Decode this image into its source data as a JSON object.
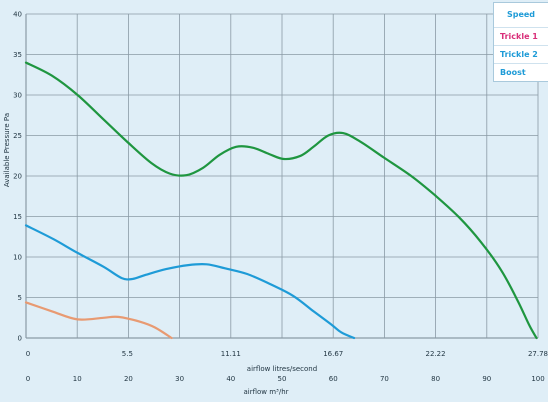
{
  "chart_data": {
    "type": "line",
    "xlabel": "airflow litres/second",
    "xlabel2": "airflow m³/hr",
    "ylabel": "Available Pressure Pa",
    "xlim": [
      0,
      27.78
    ],
    "ylim": [
      0,
      40
    ],
    "x_ticks": [
      "0",
      "5.5",
      "11.11",
      "16.67",
      "22.22",
      "27.78"
    ],
    "x_ticks2": [
      "0",
      "10",
      "20",
      "30",
      "40",
      "50",
      "60",
      "70",
      "80",
      "90",
      "100"
    ],
    "y_ticks": [
      "0",
      "5",
      "10",
      "15",
      "20",
      "25",
      "30",
      "35",
      "40"
    ],
    "legend": {
      "header": "Speed",
      "items": [
        "Trickle 1",
        "Trickle 2",
        "Boost"
      ]
    },
    "series": [
      {
        "name": "Trickle 1",
        "color": "#e89a72",
        "points": [
          [
            0,
            4.4
          ],
          [
            1.4,
            3.3
          ],
          [
            2.8,
            2.3
          ],
          [
            4.2,
            2.5
          ],
          [
            5.0,
            2.6
          ],
          [
            6.2,
            2.0
          ],
          [
            7.0,
            1.3
          ],
          [
            7.9,
            0
          ]
        ]
      },
      {
        "name": "Trickle 2",
        "color": "#1e9bd7",
        "points": [
          [
            0,
            13.9
          ],
          [
            1.5,
            12.2
          ],
          [
            2.8,
            10.5
          ],
          [
            4.2,
            8.8
          ],
          [
            5.2,
            7.4
          ],
          [
            5.8,
            7.3
          ],
          [
            6.5,
            7.8
          ],
          [
            7.6,
            8.5
          ],
          [
            8.8,
            9.0
          ],
          [
            9.8,
            9.1
          ],
          [
            10.8,
            8.6
          ],
          [
            12.0,
            7.9
          ],
          [
            13.3,
            6.6
          ],
          [
            14.5,
            5.2
          ],
          [
            15.6,
            3.3
          ],
          [
            16.6,
            1.6
          ],
          [
            17.1,
            0.7
          ],
          [
            17.8,
            0
          ]
        ]
      },
      {
        "name": "Boost",
        "color": "#1f9640",
        "points": [
          [
            0,
            34.0
          ],
          [
            1.4,
            32.4
          ],
          [
            2.8,
            30.0
          ],
          [
            4.2,
            27.0
          ],
          [
            5.5,
            24.2
          ],
          [
            6.8,
            21.6
          ],
          [
            7.8,
            20.3
          ],
          [
            8.7,
            20.1
          ],
          [
            9.6,
            21.0
          ],
          [
            10.5,
            22.6
          ],
          [
            11.4,
            23.6
          ],
          [
            12.3,
            23.5
          ],
          [
            13.2,
            22.7
          ],
          [
            14.0,
            22.1
          ],
          [
            14.9,
            22.5
          ],
          [
            15.6,
            23.6
          ],
          [
            16.4,
            25.0
          ],
          [
            17.2,
            25.3
          ],
          [
            18.1,
            24.3
          ],
          [
            19.4,
            22.3
          ],
          [
            20.9,
            20.0
          ],
          [
            22.2,
            17.6
          ],
          [
            23.5,
            14.9
          ],
          [
            24.7,
            11.8
          ],
          [
            25.8,
            8.3
          ],
          [
            26.7,
            4.5
          ],
          [
            27.3,
            1.6
          ],
          [
            27.7,
            0
          ]
        ]
      }
    ]
  }
}
